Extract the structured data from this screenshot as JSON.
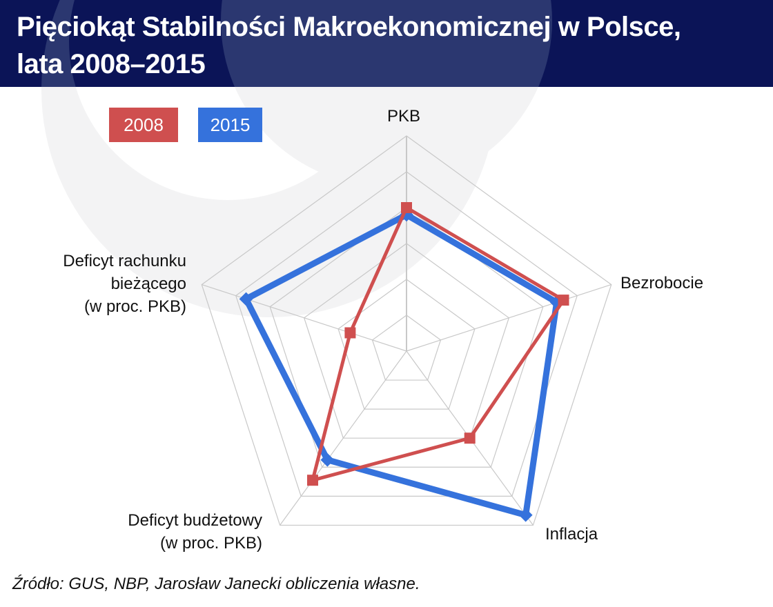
{
  "header": {
    "title_line1": "Pięciokąt Stabilności Makroekonomicznej w Polsce,",
    "title_line2": "lata 2008–2015",
    "background_color": "#0b1457"
  },
  "legend": [
    {
      "label": "2008",
      "color": "#cf4f4f"
    },
    {
      "label": "2015",
      "color": "#3572dc"
    }
  ],
  "axes": {
    "pkb": "PKB",
    "bezrobocie": "Bezrobocie",
    "inflacja": "Inflacja",
    "budget_line1": "Deficyt budżetowy",
    "budget_line2": "(w proc. PKB)",
    "ca_line1": "Deficyt rachunku",
    "ca_line2": "bieżącego",
    "ca_line3": "(w proc. PKB)"
  },
  "source": "Źródło: GUS, NBP, Jarosław Janecki obliczenia własne.",
  "chart_data": {
    "type": "radar",
    "title": "Pięciokąt Stabilności Makroekonomicznej w Polsce, lata 2008–2015",
    "categories": [
      "PKB",
      "Bezrobocie",
      "Inflacja",
      "Deficyt budżetowy (w proc. PKB)",
      "Deficyt rachunku bieżącego (w proc. PKB)"
    ],
    "series": [
      {
        "name": "2008",
        "color": "#cf4f4f",
        "values": [
          4.0,
          4.6,
          3.0,
          4.45,
          1.65
        ]
      },
      {
        "name": "2015",
        "color": "#3572dc",
        "values": [
          3.8,
          4.4,
          5.65,
          3.75,
          4.7
        ]
      }
    ],
    "rlim": [
      0,
      6
    ],
    "rings": 6,
    "grid": true,
    "legend_position": "top-left",
    "tick_labels_shown": false
  }
}
